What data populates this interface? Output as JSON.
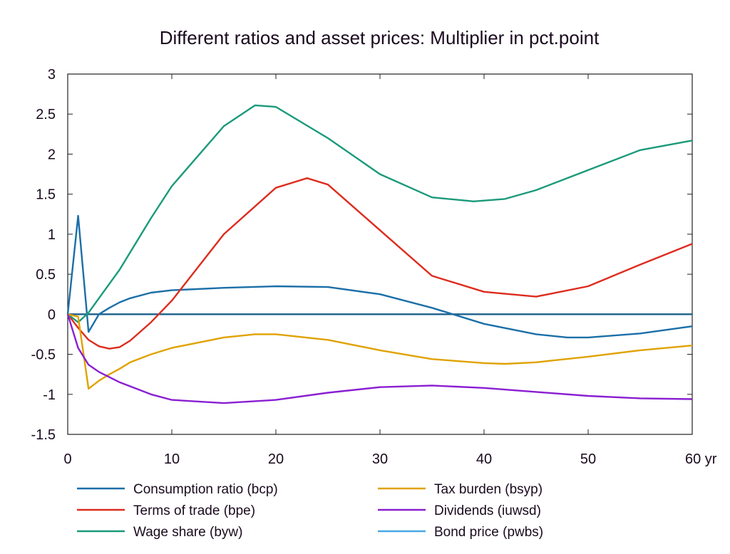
{
  "chart_data": {
    "type": "line",
    "title": "Different ratios and asset prices: Multiplier in pct.point",
    "xlabel": "",
    "ylabel": "",
    "x_unit_label": "yr",
    "xlim": [
      0,
      60
    ],
    "ylim": [
      -1.5,
      3
    ],
    "x_ticks": [
      "0",
      "10",
      "20",
      "30",
      "40",
      "50",
      "60 yr"
    ],
    "y_ticks": [
      "3",
      "2.5",
      "2",
      "1.5",
      "1",
      "0.5",
      "0",
      "-0.5",
      "-1",
      "-1.5"
    ],
    "grid": false,
    "legend_position": "bottom",
    "series": [
      {
        "name": "Consumption ratio (bcp)",
        "color": "#1b6fa8",
        "x": [
          0,
          1,
          2,
          3,
          4,
          5,
          6,
          8,
          10,
          15,
          20,
          25,
          30,
          35,
          40,
          45,
          48,
          50,
          55,
          60
        ],
        "y": [
          0,
          1.23,
          -0.22,
          0,
          0.08,
          0.15,
          0.2,
          0.27,
          0.3,
          0.33,
          0.35,
          0.34,
          0.25,
          0.08,
          -0.12,
          -0.25,
          -0.29,
          -0.29,
          -0.24,
          -0.15
        ]
      },
      {
        "name": "Terms of trade (bpe)",
        "color": "#dd2c1e",
        "x": [
          0,
          1,
          2,
          3,
          4,
          5,
          6,
          8,
          10,
          15,
          20,
          23,
          25,
          30,
          35,
          40,
          45,
          50,
          55,
          60
        ],
        "y": [
          0,
          -0.17,
          -0.32,
          -0.4,
          -0.43,
          -0.41,
          -0.33,
          -0.1,
          0.17,
          1.0,
          1.58,
          1.7,
          1.62,
          1.05,
          0.48,
          0.28,
          0.22,
          0.35,
          0.62,
          0.88
        ]
      },
      {
        "name": "Wage share (byw)",
        "color": "#1a9a7a",
        "x": [
          0,
          1,
          2,
          3,
          5,
          8,
          10,
          15,
          18,
          20,
          25,
          30,
          35,
          39,
          42,
          45,
          50,
          55,
          60
        ],
        "y": [
          0,
          -0.1,
          0.02,
          0.2,
          0.56,
          1.2,
          1.6,
          2.35,
          2.61,
          2.59,
          2.2,
          1.75,
          1.46,
          1.41,
          1.44,
          1.55,
          1.8,
          2.05,
          2.17
        ]
      },
      {
        "name": "Tax burden (bsyp)",
        "color": "#e0a200",
        "x": [
          0,
          1,
          2,
          3,
          4,
          5,
          6,
          8,
          10,
          15,
          18,
          20,
          25,
          30,
          35,
          40,
          42,
          45,
          50,
          55,
          60
        ],
        "y": [
          0,
          -0.03,
          -0.93,
          -0.83,
          -0.75,
          -0.68,
          -0.6,
          -0.5,
          -0.42,
          -0.29,
          -0.25,
          -0.25,
          -0.32,
          -0.45,
          -0.56,
          -0.61,
          -0.62,
          -0.6,
          -0.53,
          -0.45,
          -0.39
        ]
      },
      {
        "name": "Dividends (iuwsd)",
        "color": "#8a1ed2",
        "x": [
          0,
          1,
          2,
          3,
          5,
          8,
          10,
          15,
          20,
          25,
          30,
          35,
          40,
          45,
          50,
          55,
          60
        ],
        "y": [
          0,
          -0.42,
          -0.63,
          -0.72,
          -0.85,
          -1.0,
          -1.07,
          -1.11,
          -1.07,
          -0.98,
          -0.91,
          -0.89,
          -0.92,
          -0.97,
          -1.02,
          -1.05,
          -1.06
        ]
      },
      {
        "name": "Bond price (pwbs)",
        "color": "#4aa8e2",
        "x": [
          0,
          60
        ],
        "y": [
          0,
          0
        ]
      }
    ]
  }
}
